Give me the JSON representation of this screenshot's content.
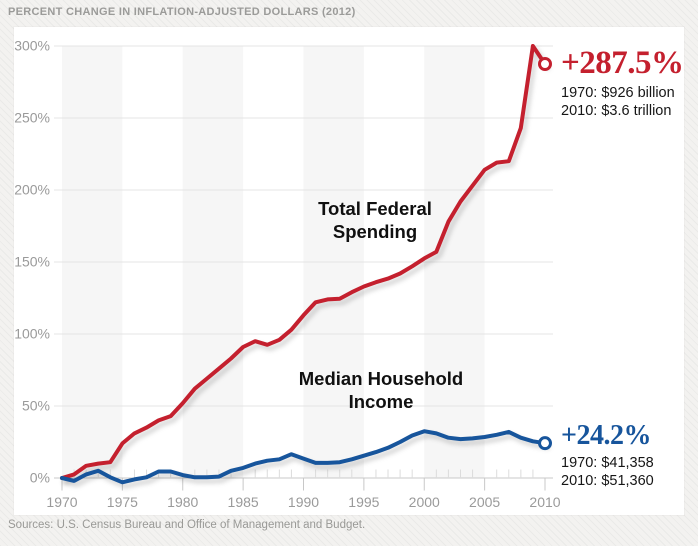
{
  "page": {
    "title": "PERCENT CHANGE IN INFLATION-ADJUSTED DOLLARS (2012)",
    "source": "Sources: U.S. Census Bureau and Office of Management and Budget."
  },
  "colors": {
    "spending": "#c4202e",
    "income": "#17559c",
    "band": "#f6f6f6",
    "grid": "#e4e4e4",
    "axis": "#c8c8c8",
    "minor_tick": "#dcdcdc",
    "tick_label": "#9a9a9a"
  },
  "labels": {
    "spending": [
      "Total Federal",
      "Spending"
    ],
    "income": [
      "Median Household",
      "Income"
    ]
  },
  "annotations": {
    "spending": {
      "pct": "+287.5%",
      "line1": "1970: $926 billion",
      "line2": "2010: $3.6 trillion"
    },
    "income": {
      "pct": "+24.2%",
      "line1": "1970: $41,358",
      "line2": "2010: $51,360"
    }
  },
  "chart_data": {
    "type": "line",
    "title": "PERCENT CHANGE IN INFLATION-ADJUSTED DOLLARS (2012)",
    "xlabel": "",
    "ylabel": "",
    "xlim": [
      1970,
      2010
    ],
    "ylim": [
      0,
      300
    ],
    "grid": true,
    "legend": "inline-labels",
    "y_ticks": [
      0,
      50,
      100,
      150,
      200,
      250,
      300
    ],
    "y_tick_labels": [
      "0%",
      "50%",
      "100%",
      "150%",
      "200%",
      "250%",
      "300%"
    ],
    "x_ticks": [
      1970,
      1975,
      1980,
      1985,
      1990,
      1995,
      2000,
      2005,
      2010
    ],
    "band_start_years": [
      1970,
      1980,
      1990,
      2000
    ],
    "x": [
      1970,
      1971,
      1972,
      1973,
      1974,
      1975,
      1976,
      1977,
      1978,
      1979,
      1980,
      1981,
      1982,
      1983,
      1984,
      1985,
      1986,
      1987,
      1988,
      1989,
      1990,
      1991,
      1992,
      1993,
      1994,
      1995,
      1996,
      1997,
      1998,
      1999,
      2000,
      2001,
      2002,
      2003,
      2004,
      2005,
      2006,
      2007,
      2008,
      2009,
      2010
    ],
    "series": [
      {
        "name": "Total Federal Spending",
        "color": "#c4202e",
        "endpoint_marker": "open-circle",
        "values": [
          0,
          2.5,
          8.5,
          10,
          11,
          24,
          31,
          35,
          40,
          43,
          52,
          62,
          69,
          76,
          83,
          91,
          95,
          92.5,
          96,
          103,
          113,
          122,
          124,
          124.5,
          129,
          133,
          136,
          138.5,
          142,
          147,
          152.5,
          157,
          178,
          192,
          203,
          214,
          219,
          220,
          243,
          300,
          287.5
        ]
      },
      {
        "name": "Median Household Income",
        "color": "#17559c",
        "endpoint_marker": "open-circle",
        "values": [
          0,
          -2,
          2.5,
          5,
          0.5,
          -3,
          -1,
          0.5,
          4.5,
          4.5,
          2,
          0.5,
          0.5,
          1,
          5,
          7,
          10,
          12,
          13,
          16.5,
          13.5,
          10.5,
          10.5,
          11,
          13,
          15.5,
          18,
          21,
          25,
          29.5,
          32.5,
          31,
          28,
          27,
          27.5,
          28.5,
          30,
          32,
          28,
          25.5,
          24.2
        ]
      }
    ]
  }
}
